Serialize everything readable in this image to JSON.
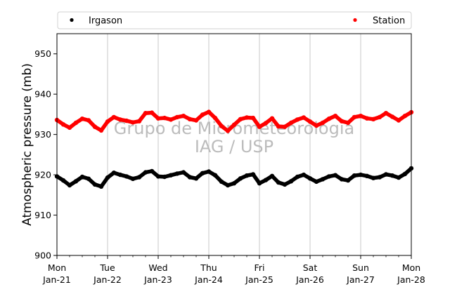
{
  "chart_data": {
    "type": "scatter",
    "ylabel": "Atmospheric pressure (mb)",
    "xlabel": "",
    "ylim": [
      900,
      955
    ],
    "yticks": [
      900,
      910,
      920,
      930,
      940,
      950
    ],
    "xlim": [
      "2018-01-21",
      "2018-01-28"
    ],
    "xticks": [
      {
        "date": "2018-01-21",
        "line1": "Mon",
        "line2": "Jan-21"
      },
      {
        "date": "2018-01-22",
        "line1": "Tue",
        "line2": "Jan-22"
      },
      {
        "date": "2018-01-23",
        "line1": "Wed",
        "line2": "Jan-23"
      },
      {
        "date": "2018-01-24",
        "line1": "Thu",
        "line2": "Jan-24"
      },
      {
        "date": "2018-01-25",
        "line1": "Fri",
        "line2": "Jan-25"
      },
      {
        "date": "2018-01-26",
        "line1": "Sat",
        "line2": "Jan-26"
      },
      {
        "date": "2018-01-27",
        "line1": "Sun",
        "line2": "Jan-27"
      },
      {
        "date": "2018-01-28",
        "line1": "Mon",
        "line2": "Jan-28"
      }
    ],
    "grid": "vertical",
    "legend": {
      "placement": "top",
      "entries": [
        "Irgason",
        "Station"
      ]
    },
    "watermark": [
      "Grupo de Micrometeorologia",
      "IAG / USP"
    ],
    "series": [
      {
        "name": "Irgason",
        "color": "#000000",
        "points": [
          [
            "2018-01-21 00:00",
            919.6
          ],
          [
            "2018-01-21 03:00",
            918.6
          ],
          [
            "2018-01-21 06:00",
            917.4
          ],
          [
            "2018-01-21 09:00",
            918.4
          ],
          [
            "2018-01-21 12:00",
            919.5
          ],
          [
            "2018-01-21 15:00",
            919.0
          ],
          [
            "2018-01-21 18:00",
            917.6
          ],
          [
            "2018-01-21 21:00",
            917.1
          ],
          [
            "2018-01-22 00:00",
            919.3
          ],
          [
            "2018-01-22 03:00",
            920.5
          ],
          [
            "2018-01-22 06:00",
            920.0
          ],
          [
            "2018-01-22 09:00",
            919.6
          ],
          [
            "2018-01-22 12:00",
            919.0
          ],
          [
            "2018-01-22 15:00",
            919.4
          ],
          [
            "2018-01-22 18:00",
            920.6
          ],
          [
            "2018-01-22 21:00",
            920.9
          ],
          [
            "2018-01-23 00:00",
            919.6
          ],
          [
            "2018-01-23 03:00",
            919.5
          ],
          [
            "2018-01-23 06:00",
            919.9
          ],
          [
            "2018-01-23 09:00",
            920.3
          ],
          [
            "2018-01-23 12:00",
            920.6
          ],
          [
            "2018-01-23 15:00",
            919.4
          ],
          [
            "2018-01-23 18:00",
            919.1
          ],
          [
            "2018-01-23 21:00",
            920.4
          ],
          [
            "2018-01-24 00:00",
            920.8
          ],
          [
            "2018-01-24 03:00",
            919.9
          ],
          [
            "2018-01-24 06:00",
            918.3
          ],
          [
            "2018-01-24 09:00",
            917.4
          ],
          [
            "2018-01-24 12:00",
            917.9
          ],
          [
            "2018-01-24 15:00",
            919.1
          ],
          [
            "2018-01-24 18:00",
            919.8
          ],
          [
            "2018-01-24 21:00",
            920.1
          ],
          [
            "2018-01-25 00:00",
            917.9
          ],
          [
            "2018-01-25 03:00",
            918.7
          ],
          [
            "2018-01-25 06:00",
            919.7
          ],
          [
            "2018-01-25 09:00",
            918.1
          ],
          [
            "2018-01-25 12:00",
            917.6
          ],
          [
            "2018-01-25 15:00",
            918.4
          ],
          [
            "2018-01-25 18:00",
            919.5
          ],
          [
            "2018-01-25 21:00",
            920.0
          ],
          [
            "2018-01-26 00:00",
            919.1
          ],
          [
            "2018-01-26 03:00",
            918.3
          ],
          [
            "2018-01-26 06:00",
            918.9
          ],
          [
            "2018-01-26 09:00",
            919.6
          ],
          [
            "2018-01-26 12:00",
            919.9
          ],
          [
            "2018-01-26 15:00",
            918.9
          ],
          [
            "2018-01-26 18:00",
            918.6
          ],
          [
            "2018-01-26 21:00",
            919.8
          ],
          [
            "2018-01-27 00:00",
            920.0
          ],
          [
            "2018-01-27 03:00",
            919.7
          ],
          [
            "2018-01-27 06:00",
            919.2
          ],
          [
            "2018-01-27 09:00",
            919.4
          ],
          [
            "2018-01-27 12:00",
            920.1
          ],
          [
            "2018-01-27 15:00",
            919.8
          ],
          [
            "2018-01-27 18:00",
            919.3
          ],
          [
            "2018-01-27 21:00",
            920.2
          ],
          [
            "2018-01-28 00:00",
            921.6
          ]
        ]
      },
      {
        "name": "Station",
        "color": "#ff0000",
        "points": [
          [
            "2018-01-21 00:00",
            933.6
          ],
          [
            "2018-01-21 03:00",
            932.5
          ],
          [
            "2018-01-21 06:00",
            931.7
          ],
          [
            "2018-01-21 09:00",
            932.9
          ],
          [
            "2018-01-21 12:00",
            933.9
          ],
          [
            "2018-01-21 15:00",
            933.5
          ],
          [
            "2018-01-21 18:00",
            931.9
          ],
          [
            "2018-01-21 21:00",
            931.0
          ],
          [
            "2018-01-22 00:00",
            933.2
          ],
          [
            "2018-01-22 03:00",
            934.3
          ],
          [
            "2018-01-22 06:00",
            933.7
          ],
          [
            "2018-01-22 09:00",
            933.4
          ],
          [
            "2018-01-22 12:00",
            933.0
          ],
          [
            "2018-01-22 15:00",
            933.3
          ],
          [
            "2018-01-22 18:00",
            935.3
          ],
          [
            "2018-01-22 21:00",
            935.4
          ],
          [
            "2018-01-23 00:00",
            934.0
          ],
          [
            "2018-01-23 03:00",
            934.1
          ],
          [
            "2018-01-23 06:00",
            933.7
          ],
          [
            "2018-01-23 09:00",
            934.3
          ],
          [
            "2018-01-23 12:00",
            934.6
          ],
          [
            "2018-01-23 15:00",
            933.8
          ],
          [
            "2018-01-23 18:00",
            933.5
          ],
          [
            "2018-01-23 21:00",
            934.9
          ],
          [
            "2018-01-24 00:00",
            935.6
          ],
          [
            "2018-01-24 03:00",
            934.1
          ],
          [
            "2018-01-24 06:00",
            932.1
          ],
          [
            "2018-01-24 09:00",
            930.9
          ],
          [
            "2018-01-24 12:00",
            932.4
          ],
          [
            "2018-01-24 15:00",
            933.8
          ],
          [
            "2018-01-24 18:00",
            934.2
          ],
          [
            "2018-01-24 21:00",
            934.1
          ],
          [
            "2018-01-25 00:00",
            931.9
          ],
          [
            "2018-01-25 03:00",
            932.8
          ],
          [
            "2018-01-25 06:00",
            934.0
          ],
          [
            "2018-01-25 09:00",
            932.0
          ],
          [
            "2018-01-25 12:00",
            931.9
          ],
          [
            "2018-01-25 15:00",
            932.9
          ],
          [
            "2018-01-25 18:00",
            933.7
          ],
          [
            "2018-01-25 21:00",
            934.2
          ],
          [
            "2018-01-26 00:00",
            933.2
          ],
          [
            "2018-01-26 03:00",
            932.2
          ],
          [
            "2018-01-26 06:00",
            932.9
          ],
          [
            "2018-01-26 09:00",
            933.9
          ],
          [
            "2018-01-26 12:00",
            934.6
          ],
          [
            "2018-01-26 15:00",
            933.3
          ],
          [
            "2018-01-26 18:00",
            932.9
          ],
          [
            "2018-01-26 21:00",
            934.3
          ],
          [
            "2018-01-27 00:00",
            934.6
          ],
          [
            "2018-01-27 03:00",
            934.0
          ],
          [
            "2018-01-27 06:00",
            933.8
          ],
          [
            "2018-01-27 09:00",
            934.3
          ],
          [
            "2018-01-27 12:00",
            935.3
          ],
          [
            "2018-01-27 15:00",
            934.4
          ],
          [
            "2018-01-27 18:00",
            933.5
          ],
          [
            "2018-01-27 21:00",
            934.6
          ],
          [
            "2018-01-28 00:00",
            935.5
          ]
        ]
      }
    ]
  }
}
